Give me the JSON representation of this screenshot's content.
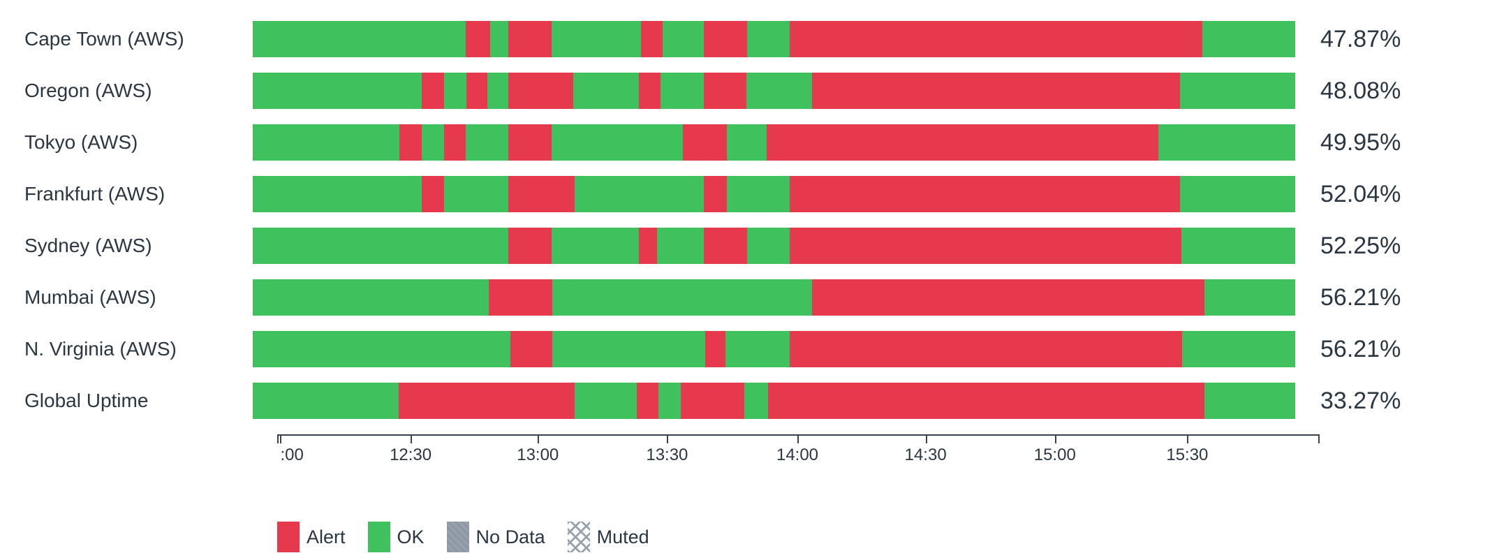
{
  "chart_data": {
    "type": "bar",
    "subtype": "horizontal-stacked-status-timeline",
    "title": "",
    "categories": [
      "Cape Town (AWS)",
      "Oregon (AWS)",
      "Tokyo (AWS)",
      "Frankfurt (AWS)",
      "Sydney (AWS)",
      "Mumbai (AWS)",
      "N. Virginia (AWS)",
      "Global Uptime"
    ],
    "values": [
      "47.87%",
      "48.08%",
      "49.95%",
      "52.04%",
      "52.25%",
      "56.21%",
      "56.21%",
      "33.27%"
    ],
    "x_axis": {
      "tick_labels": [
        ":00",
        "12:30",
        "13:00",
        "13:30",
        "14:00",
        "14:30",
        "15:00",
        "15:30"
      ],
      "tick_positions_pct": [
        0.3,
        12.8,
        25.0,
        37.4,
        49.9,
        62.2,
        74.6,
        87.3
      ],
      "grid": false
    },
    "legend_position": "bottom",
    "rows": [
      {
        "label": "Cape Town (AWS)",
        "uptime": "47.87%",
        "segments": [
          [
            "ok",
            20.43
          ],
          [
            "alert",
            2.34
          ],
          [
            "ok",
            1.74
          ],
          [
            "alert",
            4.15
          ],
          [
            "ok",
            8.57
          ],
          [
            "alert",
            2.08
          ],
          [
            "ok",
            3.95
          ],
          [
            "alert",
            4.15
          ],
          [
            "ok",
            4.09
          ],
          [
            "alert",
            39.58
          ],
          [
            "ok",
            8.91
          ]
        ]
      },
      {
        "label": "Oregon (AWS)",
        "uptime": "48.08%",
        "segments": [
          [
            "ok",
            16.21
          ],
          [
            "alert",
            2.14
          ],
          [
            "ok",
            2.14
          ],
          [
            "alert",
            2.01
          ],
          [
            "ok",
            2.01
          ],
          [
            "alert",
            6.23
          ],
          [
            "ok",
            6.3
          ],
          [
            "alert",
            2.08
          ],
          [
            "ok",
            4.15
          ],
          [
            "alert",
            4.09
          ],
          [
            "ok",
            6.3
          ],
          [
            "alert",
            35.3
          ],
          [
            "ok",
            11.05
          ]
        ]
      },
      {
        "label": "Tokyo (AWS)",
        "uptime": "49.95%",
        "segments": [
          [
            "ok",
            14.07
          ],
          [
            "alert",
            2.14
          ],
          [
            "ok",
            2.14
          ],
          [
            "alert",
            2.08
          ],
          [
            "ok",
            4.09
          ],
          [
            "alert",
            4.15
          ],
          [
            "ok",
            12.59
          ],
          [
            "alert",
            4.22
          ],
          [
            "ok",
            3.82
          ],
          [
            "alert",
            37.58
          ],
          [
            "ok",
            13.13
          ]
        ]
      },
      {
        "label": "Frankfurt (AWS)",
        "uptime": "52.04%",
        "segments": [
          [
            "ok",
            16.21
          ],
          [
            "alert",
            2.14
          ],
          [
            "ok",
            6.16
          ],
          [
            "alert",
            6.36
          ],
          [
            "ok",
            12.39
          ],
          [
            "alert",
            2.21
          ],
          [
            "ok",
            6.03
          ],
          [
            "alert",
            37.44
          ],
          [
            "ok",
            11.05
          ]
        ]
      },
      {
        "label": "Sydney (AWS)",
        "uptime": "52.25%",
        "segments": [
          [
            "ok",
            24.51
          ],
          [
            "alert",
            4.15
          ],
          [
            "ok",
            8.37
          ],
          [
            "alert",
            1.74
          ],
          [
            "ok",
            4.49
          ],
          [
            "alert",
            4.15
          ],
          [
            "ok",
            4.09
          ],
          [
            "alert",
            37.58
          ],
          [
            "ok",
            10.92
          ]
        ]
      },
      {
        "label": "Mumbai (AWS)",
        "uptime": "56.21%",
        "segments": [
          [
            "ok",
            22.64
          ],
          [
            "alert",
            6.1
          ],
          [
            "ok",
            24.92
          ],
          [
            "alert",
            37.64
          ],
          [
            "ok",
            8.71
          ]
        ]
      },
      {
        "label": "N. Virginia (AWS)",
        "uptime": "56.21%",
        "segments": [
          [
            "ok",
            24.72
          ],
          [
            "alert",
            4.02
          ],
          [
            "ok",
            14.67
          ],
          [
            "alert",
            1.94
          ],
          [
            "ok",
            6.16
          ],
          [
            "alert",
            37.64
          ],
          [
            "ok",
            10.85
          ]
        ]
      },
      {
        "label": "Global Uptime",
        "uptime": "33.27%",
        "segments": [
          [
            "ok",
            14.0
          ],
          [
            "alert",
            16.88
          ],
          [
            "ok",
            5.96
          ],
          [
            "alert",
            2.08
          ],
          [
            "ok",
            2.14
          ],
          [
            "alert",
            6.1
          ],
          [
            "ok",
            2.28
          ],
          [
            "alert",
            41.86
          ],
          [
            "ok",
            8.71
          ]
        ]
      }
    ]
  },
  "legend": {
    "items": [
      {
        "label": "Alert",
        "key": "alert"
      },
      {
        "label": "OK",
        "key": "ok"
      },
      {
        "label": "No Data",
        "key": "nodata"
      },
      {
        "label": "Muted",
        "key": "muted"
      }
    ]
  },
  "colors": {
    "alert": "#e7394e",
    "ok": "#3fc25e",
    "no_data": "#8f99a5",
    "text": "#2a3642",
    "axis": "#37434f"
  }
}
